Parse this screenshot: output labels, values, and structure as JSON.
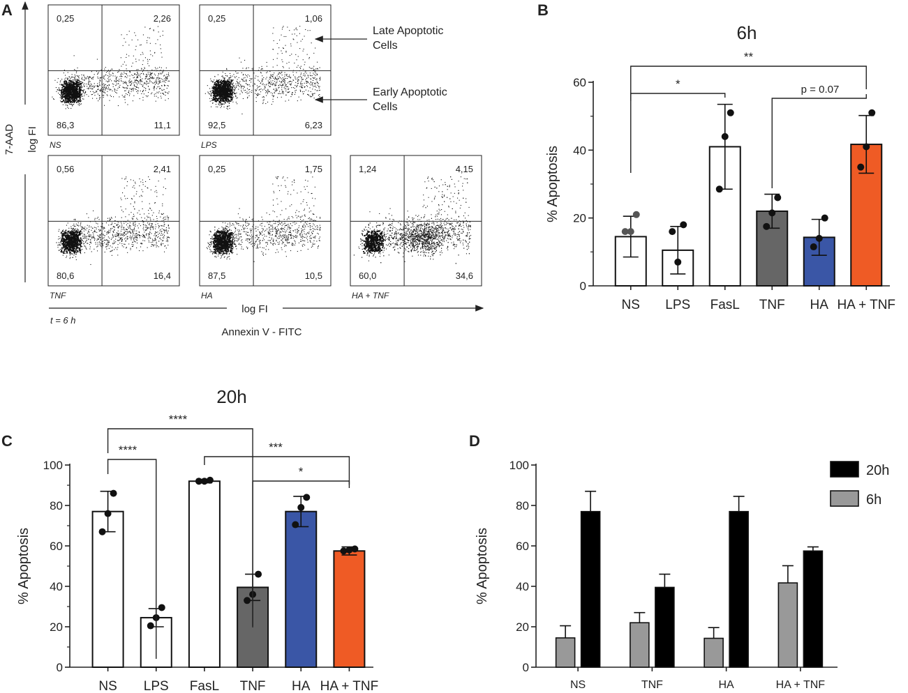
{
  "chart_data": [
    {
      "panel": "A",
      "type": "scatter",
      "subtype": "flow-cytometry-quadrants",
      "ylabel_outer": "7-AAD",
      "ylabel_inner": "log FI",
      "xlabel_inner": "log FI",
      "xlabel_outer": "Annexin V - FITC",
      "time": "t = 6 h",
      "annotations": {
        "late": [
          "Late Apoptotic",
          "Cells"
        ],
        "early": [
          "Early Apoptotic",
          "Cells"
        ]
      },
      "plots": [
        {
          "name": "NS",
          "ul": "0,25",
          "ur": "2,26",
          "ll": "86,3",
          "lr": "11,1"
        },
        {
          "name": "LPS",
          "ul": "0,25",
          "ur": "1,06",
          "ll": "92,5",
          "lr": "6,23"
        },
        {
          "name": "TNF",
          "ul": "0,56",
          "ur": "2,41",
          "ll": "80,6",
          "lr": "16,4"
        },
        {
          "name": "HA",
          "ul": "0,25",
          "ur": "1,75",
          "ll": "87,5",
          "lr": "10,5"
        },
        {
          "name": "HA + TNF",
          "ul": "1,24",
          "ur": "4,15",
          "ll": "60,0",
          "lr": "34,6"
        }
      ]
    },
    {
      "panel": "B",
      "type": "bar",
      "title": "6h",
      "ylabel": "% Apoptosis",
      "ylim": [
        0,
        60
      ],
      "yticks": [
        0,
        20,
        40,
        60
      ],
      "categories": [
        "NS",
        "LPS",
        "FasL",
        "TNF",
        "HA",
        "HA + TNF"
      ],
      "values": [
        14.5,
        10.5,
        41,
        22,
        14.3,
        41.7
      ],
      "errors": [
        6,
        7,
        12.5,
        5,
        5.3,
        8.5
      ],
      "colors": [
        "#ffffff",
        "#ffffff",
        "#ffffff",
        "#666666",
        "#3a56a6",
        "#ef5b25"
      ],
      "points": [
        [
          16,
          16,
          21
        ],
        [
          16,
          7,
          18
        ],
        [
          28.5,
          44,
          51
        ],
        [
          17.5,
          21.5,
          26
        ],
        [
          11.5,
          14,
          20
        ],
        [
          35,
          41,
          51
        ]
      ],
      "significance": [
        {
          "from": "NS",
          "to": "FasL",
          "label": "*"
        },
        {
          "from": "TNF",
          "to": "HA + TNF",
          "label": "p = 0.07"
        },
        {
          "from": "NS",
          "to": "HA + TNF",
          "label": "**"
        }
      ]
    },
    {
      "panel": "C",
      "type": "bar",
      "title": "20h",
      "ylabel": "% Apoptosis",
      "ylim": [
        0,
        100
      ],
      "yticks": [
        0,
        20,
        40,
        60,
        80,
        100
      ],
      "categories": [
        "NS",
        "LPS",
        "FasL",
        "TNF",
        "HA",
        "HA + TNF"
      ],
      "values": [
        77,
        24.5,
        92,
        39.5,
        77,
        57.5
      ],
      "errors": [
        10,
        4.5,
        0.8,
        6.5,
        7.5,
        2
      ],
      "colors": [
        "#ffffff",
        "#ffffff",
        "#ffffff",
        "#666666",
        "#3a56a6",
        "#ef5b25"
      ],
      "points": [
        [
          67,
          76,
          86
        ],
        [
          20.5,
          24.5,
          29.5
        ],
        [
          92,
          92,
          92.5
        ],
        [
          33,
          36,
          46
        ],
        [
          70.5,
          79,
          84
        ],
        [
          57.5,
          58,
          58.5
        ]
      ],
      "significance": [
        {
          "from": "NS",
          "to": "LPS",
          "label": "****"
        },
        {
          "from": "NS",
          "to": "TNF",
          "label": "****"
        },
        {
          "from": "FasL",
          "to": "HA + TNF",
          "label": "***"
        },
        {
          "from": "TNF",
          "to": "HA + TNF",
          "label": "*"
        }
      ]
    },
    {
      "panel": "D",
      "type": "bar",
      "ylabel": "% Apoptosis",
      "ylim": [
        0,
        100
      ],
      "yticks": [
        0,
        20,
        40,
        60,
        80,
        100
      ],
      "categories": [
        "NS",
        "TNF",
        "HA",
        "HA + TNF"
      ],
      "series": [
        {
          "name": "6h",
          "color": "#999999",
          "values": [
            14.5,
            22,
            14.3,
            41.7
          ],
          "errors": [
            6,
            5,
            5.3,
            8.5
          ]
        },
        {
          "name": "20h",
          "color": "#000000",
          "values": [
            77,
            39.5,
            77,
            57.5
          ],
          "errors": [
            10,
            6.5,
            7.5,
            2
          ]
        }
      ],
      "legend": {
        "position": "top-right",
        "order": [
          "20h",
          "6h"
        ]
      }
    }
  ]
}
